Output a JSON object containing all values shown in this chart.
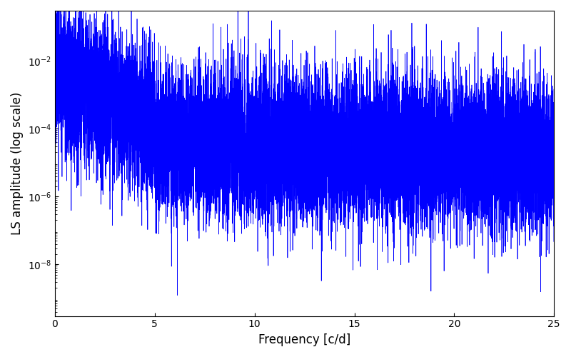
{
  "title": "",
  "xlabel": "Frequency [c/d]",
  "ylabel": "LS amplitude (log scale)",
  "xlim": [
    0,
    25
  ],
  "ylim": [
    3e-10,
    0.3
  ],
  "line_color": "#0000ff",
  "line_width": 0.5,
  "background_color": "#ffffff",
  "freq_max": 25.0,
  "n_points": 15000,
  "seed": 137,
  "yscale": "log",
  "figsize": [
    8.0,
    5.0
  ],
  "dpi": 100,
  "yticks": [
    1e-08,
    1e-06,
    0.0001,
    0.01
  ],
  "xticks": [
    0,
    5,
    10,
    15,
    20,
    25
  ]
}
